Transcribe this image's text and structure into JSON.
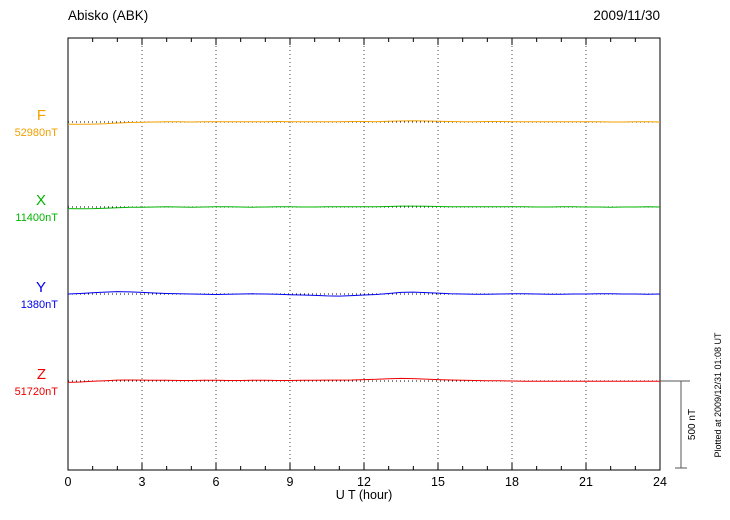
{
  "header": {
    "station": "Abisko (ABK)",
    "date": "2009/11/30"
  },
  "footer": {
    "xlabel": "U T (hour)"
  },
  "side_notes": {
    "scale_bar_label": "500 nT",
    "plotted_at": "Plotted at 2009/12/31 01:08 UT"
  },
  "chart_data": {
    "type": "line",
    "title": "Abisko (ABK)",
    "date_label": "2009/11/30",
    "xlabel": "U T (hour)",
    "xlim": [
      0,
      24
    ],
    "x_ticks": [
      0,
      3,
      6,
      9,
      12,
      15,
      18,
      21,
      24
    ],
    "x_minor_tick_step_hours": 1,
    "grid": "dotted vertical lines at 3-hour ticks; dotted horizontal baseline per series",
    "legend_position": "left margin labels",
    "scale_bar": {
      "label": "500 nT",
      "span_nT": 500
    },
    "plotted_at": "Plotted at 2009/12/31 01:08 UT",
    "sample_step_hours": 0.5,
    "series": [
      {
        "name": "F",
        "baseline_label": "52980nT",
        "baseline_nT": 52980,
        "color": "#f0a000",
        "offsets_nT": [
          -13,
          -13,
          -12,
          -10,
          -6,
          -3,
          -1,
          0,
          1,
          1,
          0,
          1,
          2,
          2,
          1,
          1,
          2,
          3,
          2,
          1,
          1,
          2,
          2,
          3,
          3,
          2,
          4,
          6,
          7,
          6,
          4,
          3,
          2,
          2,
          3,
          3,
          2,
          2,
          1,
          1,
          1,
          2,
          1,
          1,
          0,
          0,
          1,
          1,
          0
        ]
      },
      {
        "name": "X",
        "baseline_label": "11400nT",
        "baseline_nT": 11400,
        "color": "#00b400",
        "offsets_nT": [
          -9,
          -10,
          -9,
          -7,
          -4,
          -2,
          -1,
          0,
          1,
          0,
          -1,
          0,
          1,
          1,
          0,
          -1,
          0,
          1,
          1,
          0,
          0,
          1,
          1,
          2,
          2,
          1,
          3,
          5,
          5,
          4,
          3,
          2,
          1,
          1,
          2,
          2,
          1,
          1,
          0,
          0,
          1,
          1,
          0,
          0,
          -1,
          0,
          0,
          1,
          0
        ]
      },
      {
        "name": "Y",
        "baseline_label": "1380nT",
        "baseline_nT": 1380,
        "color": "#0000ee",
        "offsets_nT": [
          0,
          3,
          7,
          11,
          14,
          12,
          9,
          6,
          3,
          1,
          0,
          -2,
          -3,
          -2,
          0,
          1,
          0,
          -2,
          -4,
          -6,
          -8,
          -11,
          -12,
          -9,
          -6,
          -3,
          3,
          9,
          11,
          8,
          5,
          2,
          0,
          -2,
          -2,
          0,
          1,
          1,
          0,
          -1,
          -1,
          0,
          0,
          1,
          1,
          0,
          0,
          -1,
          0
        ]
      },
      {
        "name": "Z",
        "baseline_label": "51720nT",
        "baseline_nT": 51720,
        "color": "#ee0000",
        "offsets_nT": [
          -8,
          -6,
          -2,
          2,
          5,
          6,
          5,
          4,
          4,
          3,
          3,
          4,
          4,
          3,
          3,
          4,
          4,
          3,
          3,
          4,
          4,
          5,
          5,
          6,
          8,
          10,
          13,
          15,
          14,
          11,
          8,
          6,
          4,
          3,
          2,
          1,
          0,
          -1,
          -1,
          -2,
          -2,
          -1,
          -1,
          -2,
          -2,
          -1,
          -1,
          -2,
          -2
        ]
      }
    ]
  }
}
